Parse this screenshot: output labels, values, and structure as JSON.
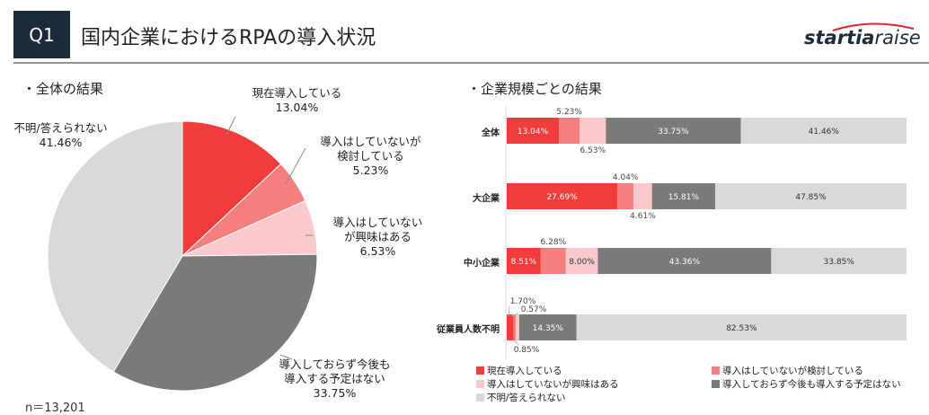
{
  "header": {
    "q": "Q1",
    "title": "国内企業におけるRPAの導入状況",
    "logo_bold": "startia",
    "logo_light": "raise"
  },
  "left": {
    "section": "・全体の結果",
    "n": "n＝13,201"
  },
  "right": {
    "section": "・企業規模ごとの結果"
  },
  "colors": [
    "#f23c3c",
    "#f57f7f",
    "#f9c9cc",
    "#7a7a7a",
    "#d9d9d9"
  ],
  "chart_data": [
    {
      "type": "pie",
      "title": "全体の結果",
      "categories": [
        "現在導入している",
        "導入はしていないが検討している",
        "導入はしていないが興味はある",
        "導入しておらず今後も導入する予定はない",
        "不明/答えられない"
      ],
      "labels": [
        [
          "現在導入している",
          "13.04%"
        ],
        [
          "導入はしていないが",
          "検討している",
          "5.23%"
        ],
        [
          "導入はしていない",
          "が興味はある",
          "6.53%"
        ],
        [
          "導入しておらず今後も",
          "導入する予定はない",
          "33.75%"
        ],
        [
          "不明/答えられない",
          "41.46%"
        ]
      ],
      "values": [
        13.04,
        5.23,
        6.53,
        33.75,
        41.46
      ]
    },
    {
      "type": "bar",
      "stacked": true,
      "orientation": "horizontal",
      "categories": [
        "全体",
        "大企業",
        "中小企業",
        "従業員人数不明"
      ],
      "legend": [
        "現在導入している",
        "導入はしていないが検討している",
        "導入はしていないが興味はある",
        "導入しておらず今後も導入する予定はない",
        "不明/答えられない"
      ],
      "series_values": [
        [
          13.04,
          5.23,
          6.53,
          33.75,
          41.46
        ],
        [
          27.69,
          4.04,
          4.61,
          15.81,
          47.85
        ],
        [
          8.51,
          6.28,
          8.0,
          43.36,
          33.85
        ],
        [
          1.7,
          0.57,
          0.85,
          14.35,
          82.53
        ]
      ],
      "labels": [
        [
          "13.04%",
          "5.23%",
          "6.53%",
          "33.75%",
          "41.46%"
        ],
        [
          "27.69%",
          "4.04%",
          "4.61%",
          "15.81%",
          "47.85%"
        ],
        [
          "8.51%",
          "6.28%",
          "8.00%",
          "43.36%",
          "33.85%"
        ],
        [
          "1.70%",
          "0.57%",
          "0.85%",
          "14.35%",
          "82.53%"
        ]
      ]
    }
  ]
}
